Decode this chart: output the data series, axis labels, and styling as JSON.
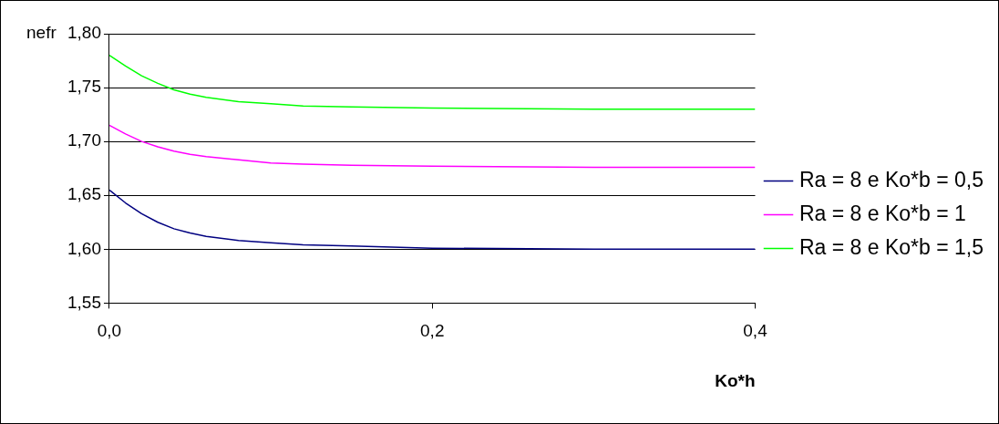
{
  "chart_data": {
    "type": "line",
    "xlabel": "Ko*h",
    "ylabel": "nefr",
    "xlim": [
      0,
      0.4
    ],
    "xticks": [
      {
        "value": 0,
        "label": "0,0"
      },
      {
        "value": 0.2,
        "label": "0,2"
      },
      {
        "value": 0.4,
        "label": "0,4"
      }
    ],
    "ylim": [
      1.55,
      1.8
    ],
    "yticks": [
      {
        "value": 1.55,
        "label": "1,55"
      },
      {
        "value": 1.6,
        "label": "1,60"
      },
      {
        "value": 1.65,
        "label": "1,65"
      },
      {
        "value": 1.7,
        "label": "1,70"
      },
      {
        "value": 1.75,
        "label": "1,75"
      },
      {
        "value": 1.8,
        "label": "1,80"
      }
    ],
    "x": [
      0,
      0.01,
      0.02,
      0.03,
      0.04,
      0.05,
      0.06,
      0.08,
      0.1,
      0.12,
      0.15,
      0.2,
      0.3,
      0.4
    ],
    "grid": "y",
    "legend": "right",
    "marker": "none",
    "line_style": "solid",
    "series": [
      {
        "name": "Ra = 8 e Ko*b = 0,5",
        "color": "#000080",
        "values": [
          1.655,
          1.643,
          1.633,
          1.625,
          1.619,
          1.615,
          1.612,
          1.608,
          1.606,
          1.604,
          1.603,
          1.601,
          1.6,
          1.6
        ]
      },
      {
        "name": "Ra = 8 e Ko*b = 1",
        "color": "#ff00ff",
        "values": [
          1.715,
          1.707,
          1.7,
          1.695,
          1.691,
          1.688,
          1.686,
          1.683,
          1.68,
          1.679,
          1.678,
          1.677,
          1.676,
          1.676
        ]
      },
      {
        "name": "Ra = 8 e Ko*b = 1,5",
        "color": "#00ff00",
        "values": [
          1.78,
          1.77,
          1.761,
          1.754,
          1.748,
          1.744,
          1.741,
          1.737,
          1.735,
          1.733,
          1.732,
          1.731,
          1.73,
          1.73
        ]
      }
    ]
  }
}
